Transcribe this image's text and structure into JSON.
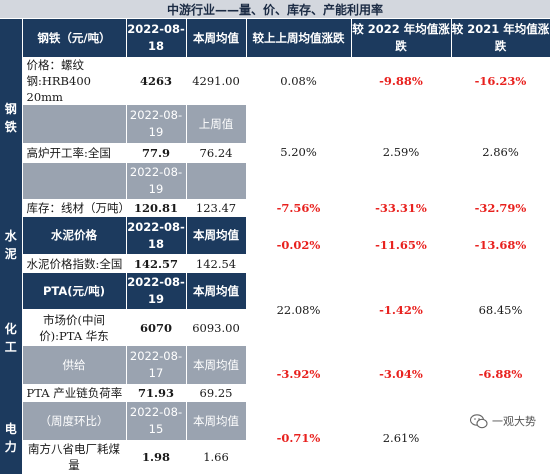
{
  "title": "中游行业——量、价、库存、产能利用率",
  "sectors": {
    "steel": "钢铁",
    "cement": "水泥",
    "chemical": "化工",
    "power": "电力"
  },
  "steel_header": {
    "name": "钢铁（元/吨）",
    "date": "2022-08-18",
    "avg": "本周均值",
    "vs_last": "较上上周均值涨跌",
    "vs_2022": "较 2022 年均值涨跌",
    "vs_2021": "较 2021 年均值涨跌"
  },
  "rebar": {
    "label": "价格：螺纹钢:HRB400 20mm",
    "value": "4263",
    "avg": "4291.00",
    "vs_last": "0.08%",
    "vs_2022": "-9.88%",
    "vs_2021": "-16.23%"
  },
  "blast_sub": {
    "date": "2022-08-19",
    "avg": "上周值"
  },
  "blast": {
    "label": "高炉开工率:全国",
    "value": "77.9",
    "avg": "76.24",
    "vs_last": "5.20%",
    "vs_2022": "2.59%",
    "vs_2021": "2.86%"
  },
  "wire_sub": {
    "date": "2022-08-19"
  },
  "wire": {
    "label": "库存：线材（万吨）",
    "value": "120.81",
    "avg": "123.47",
    "vs_last": "-7.56%",
    "vs_2022": "-33.31%",
    "vs_2021": "-32.79%"
  },
  "cement_header": {
    "name": "水泥价格",
    "date": "2022-08-18",
    "avg": "本周均值"
  },
  "cement": {
    "label": "水泥价格指数:全国",
    "value": "142.57",
    "avg": "142.54",
    "vs_last": "-0.02%",
    "vs_2022": "-11.65%",
    "vs_2021": "-13.68%"
  },
  "pta_header": {
    "name": "PTA(元/吨)",
    "date": "2022-08-19",
    "avg": "本周均值"
  },
  "pta_price": {
    "label": "市场价(中间价):PTA 华东",
    "value": "6070",
    "avg": "6093.00",
    "vs_last": "22.08%",
    "vs_2022": "-1.42%",
    "vs_2021": "68.45%"
  },
  "pta_sub": {
    "name": "供给",
    "date": "2022-08-17",
    "avg": "本周均值"
  },
  "pta_load": {
    "label": "PTA 产业链负荷率",
    "value": "71.93",
    "avg": "69.25",
    "vs_last": "-3.92%",
    "vs_2022": "-3.04%",
    "vs_2021": "-6.88%"
  },
  "power_sub": {
    "name": "（周度环比）",
    "date": "2022-08-15",
    "avg": "本周均值"
  },
  "coal": {
    "label": "南方八省电厂耗煤量",
    "value": "1.98",
    "avg": "1.66",
    "vs_last": "-0.71%",
    "vs_2022": "2.61%",
    "vs_2021": ""
  },
  "watermark": "一观大势",
  "colors": {
    "header_navy": "#1c3a5e",
    "sub_gray": "#9aa3b0",
    "negative_red": "#e8211e"
  }
}
